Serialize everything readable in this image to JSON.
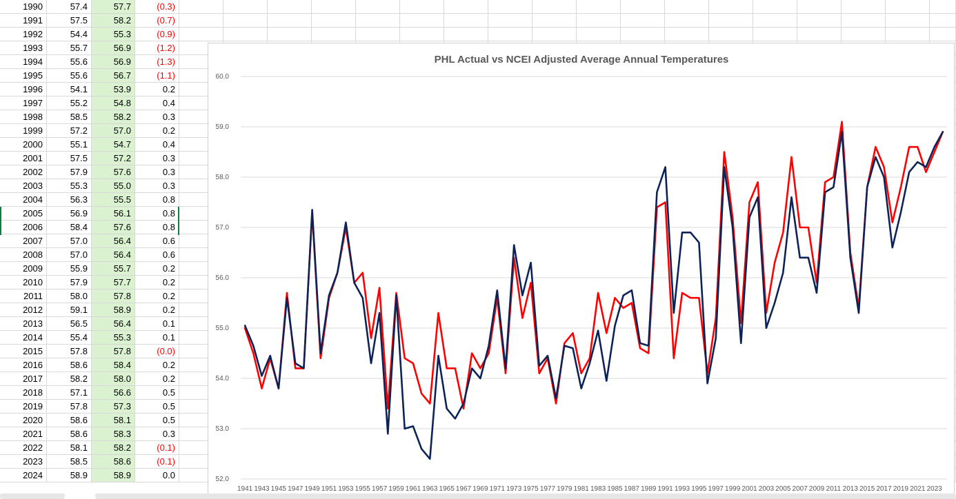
{
  "sheet": {
    "rows": [
      {
        "year": "1990",
        "actual": "57.4",
        "adjusted": "57.7",
        "diff": "(0.3)",
        "negative": true
      },
      {
        "year": "1991",
        "actual": "57.5",
        "adjusted": "58.2",
        "diff": "(0.7)",
        "negative": true
      },
      {
        "year": "1992",
        "actual": "54.4",
        "adjusted": "55.3",
        "diff": "(0.9)",
        "negative": true
      },
      {
        "year": "1993",
        "actual": "55.7",
        "adjusted": "56.9",
        "diff": "(1.2)",
        "negative": true
      },
      {
        "year": "1994",
        "actual": "55.6",
        "adjusted": "56.9",
        "diff": "(1.3)",
        "negative": true
      },
      {
        "year": "1995",
        "actual": "55.6",
        "adjusted": "56.7",
        "diff": "(1.1)",
        "negative": true
      },
      {
        "year": "1996",
        "actual": "54.1",
        "adjusted": "53.9",
        "diff": "0.2",
        "negative": false
      },
      {
        "year": "1997",
        "actual": "55.2",
        "adjusted": "54.8",
        "diff": "0.4",
        "negative": false
      },
      {
        "year": "1998",
        "actual": "58.5",
        "adjusted": "58.2",
        "diff": "0.3",
        "negative": false
      },
      {
        "year": "1999",
        "actual": "57.2",
        "adjusted": "57.0",
        "diff": "0.2",
        "negative": false
      },
      {
        "year": "2000",
        "actual": "55.1",
        "adjusted": "54.7",
        "diff": "0.4",
        "negative": false
      },
      {
        "year": "2001",
        "actual": "57.5",
        "adjusted": "57.2",
        "diff": "0.3",
        "negative": false
      },
      {
        "year": "2002",
        "actual": "57.9",
        "adjusted": "57.6",
        "diff": "0.3",
        "negative": false
      },
      {
        "year": "2003",
        "actual": "55.3",
        "adjusted": "55.0",
        "diff": "0.3",
        "negative": false
      },
      {
        "year": "2004",
        "actual": "56.3",
        "adjusted": "55.5",
        "diff": "0.8",
        "negative": false
      },
      {
        "year": "2005",
        "actual": "56.9",
        "adjusted": "56.1",
        "diff": "0.8",
        "negative": false
      },
      {
        "year": "2006",
        "actual": "58.4",
        "adjusted": "57.6",
        "diff": "0.8",
        "negative": false
      },
      {
        "year": "2007",
        "actual": "57.0",
        "adjusted": "56.4",
        "diff": "0.6",
        "negative": false
      },
      {
        "year": "2008",
        "actual": "57.0",
        "adjusted": "56.4",
        "diff": "0.6",
        "negative": false
      },
      {
        "year": "2009",
        "actual": "55.9",
        "adjusted": "55.7",
        "diff": "0.2",
        "negative": false
      },
      {
        "year": "2010",
        "actual": "57.9",
        "adjusted": "57.7",
        "diff": "0.2",
        "negative": false
      },
      {
        "year": "2011",
        "actual": "58.0",
        "adjusted": "57.8",
        "diff": "0.2",
        "negative": false
      },
      {
        "year": "2012",
        "actual": "59.1",
        "adjusted": "58.9",
        "diff": "0.2",
        "negative": false
      },
      {
        "year": "2013",
        "actual": "56.5",
        "adjusted": "56.4",
        "diff": "0.1",
        "negative": false
      },
      {
        "year": "2014",
        "actual": "55.4",
        "adjusted": "55.3",
        "diff": "0.1",
        "negative": false
      },
      {
        "year": "2015",
        "actual": "57.8",
        "adjusted": "57.8",
        "diff": "(0.0)",
        "negative": true
      },
      {
        "year": "2016",
        "actual": "58.6",
        "adjusted": "58.4",
        "diff": "0.2",
        "negative": false
      },
      {
        "year": "2017",
        "actual": "58.2",
        "adjusted": "58.0",
        "diff": "0.2",
        "negative": false
      },
      {
        "year": "2018",
        "actual": "57.1",
        "adjusted": "56.6",
        "diff": "0.5",
        "negative": false
      },
      {
        "year": "2019",
        "actual": "57.8",
        "adjusted": "57.3",
        "diff": "0.5",
        "negative": false
      },
      {
        "year": "2020",
        "actual": "58.6",
        "adjusted": "58.1",
        "diff": "0.5",
        "negative": false
      },
      {
        "year": "2021",
        "actual": "58.6",
        "adjusted": "58.3",
        "diff": "0.3",
        "negative": false
      },
      {
        "year": "2022",
        "actual": "58.1",
        "adjusted": "58.2",
        "diff": "(0.1)",
        "negative": true
      },
      {
        "year": "2023",
        "actual": "58.5",
        "adjusted": "58.6",
        "diff": "(0.1)",
        "negative": true
      },
      {
        "year": "2024",
        "actual": "58.9",
        "adjusted": "58.9",
        "diff": "0.0",
        "negative": false
      }
    ]
  },
  "chart_data": {
    "type": "line",
    "title": "PHL Actual vs NCEI Adjusted Average Annual Temperatures",
    "xlabel": "",
    "ylabel": "",
    "ylim": [
      52.0,
      60.0
    ],
    "yticks": [
      "52.0",
      "53.0",
      "54.0",
      "55.0",
      "56.0",
      "57.0",
      "58.0",
      "59.0",
      "60.0"
    ],
    "grid": true,
    "legend": "none",
    "x": [
      1941,
      1942,
      1943,
      1944,
      1945,
      1946,
      1947,
      1948,
      1949,
      1950,
      1951,
      1952,
      1953,
      1954,
      1955,
      1956,
      1957,
      1958,
      1959,
      1960,
      1961,
      1962,
      1963,
      1964,
      1965,
      1966,
      1967,
      1968,
      1969,
      1970,
      1971,
      1972,
      1973,
      1974,
      1975,
      1976,
      1977,
      1978,
      1979,
      1980,
      1981,
      1982,
      1983,
      1984,
      1985,
      1986,
      1987,
      1988,
      1989,
      1990,
      1991,
      1992,
      1993,
      1994,
      1995,
      1996,
      1997,
      1998,
      1999,
      2000,
      2001,
      2002,
      2003,
      2004,
      2005,
      2006,
      2007,
      2008,
      2009,
      2010,
      2011,
      2012,
      2013,
      2014,
      2015,
      2016,
      2017,
      2018,
      2019,
      2020,
      2021,
      2022,
      2023,
      2024
    ],
    "xtick_labels": [
      "1941",
      "1943",
      "1945",
      "1947",
      "1949",
      "1951",
      "1953",
      "1955",
      "1957",
      "1959",
      "1961",
      "1963",
      "1965",
      "1967",
      "1969",
      "1971",
      "1973",
      "1975",
      "1977",
      "1979",
      "1981",
      "1983",
      "1985",
      "1987",
      "1989",
      "1991",
      "1993",
      "1995",
      "1997",
      "1999",
      "2001",
      "2003",
      "2005",
      "2007",
      "2009",
      "2011",
      "2013",
      "2015",
      "2017",
      "2019",
      "2021",
      "2023"
    ],
    "series": [
      {
        "color": "#ff0000",
        "values": [
          55.0,
          54.5,
          53.8,
          54.4,
          53.8,
          55.7,
          54.2,
          54.2,
          57.3,
          54.4,
          55.6,
          56.1,
          57.0,
          55.9,
          56.1,
          54.8,
          55.8,
          53.4,
          55.7,
          54.4,
          54.3,
          53.7,
          53.5,
          55.3,
          54.2,
          54.2,
          53.4,
          54.5,
          54.2,
          54.5,
          55.6,
          54.1,
          56.4,
          55.2,
          55.9,
          54.1,
          54.4,
          53.5,
          54.7,
          54.9,
          54.1,
          54.4,
          55.7,
          54.9,
          55.6,
          55.4,
          55.5,
          54.6,
          54.5,
          57.4,
          57.5,
          54.4,
          55.7,
          55.6,
          55.6,
          54.1,
          55.2,
          58.5,
          57.2,
          55.1,
          57.5,
          57.9,
          55.3,
          56.3,
          56.9,
          58.4,
          57.0,
          57.0,
          55.9,
          57.9,
          58.0,
          59.1,
          56.5,
          55.4,
          57.8,
          58.6,
          58.2,
          57.1,
          57.8,
          58.6,
          58.6,
          58.1,
          58.5,
          58.9
        ]
      },
      {
        "color": "#0c2357",
        "values": [
          55.05,
          54.65,
          54.05,
          54.45,
          53.8,
          55.6,
          54.3,
          54.2,
          57.35,
          54.5,
          55.65,
          56.1,
          57.1,
          55.9,
          55.6,
          54.3,
          55.3,
          52.9,
          55.65,
          53.0,
          53.05,
          52.6,
          52.4,
          54.45,
          53.4,
          53.2,
          53.5,
          54.2,
          54.0,
          54.65,
          55.75,
          54.2,
          56.65,
          55.65,
          56.3,
          54.25,
          54.45,
          53.6,
          54.65,
          54.6,
          53.8,
          54.3,
          54.95,
          53.95,
          55.05,
          55.65,
          55.75,
          54.7,
          54.65,
          57.7,
          58.2,
          55.3,
          56.9,
          56.9,
          56.7,
          53.9,
          54.8,
          58.2,
          57.0,
          54.7,
          57.2,
          57.6,
          55.0,
          55.5,
          56.1,
          57.6,
          56.4,
          56.4,
          55.7,
          57.7,
          57.8,
          58.9,
          56.4,
          55.3,
          57.8,
          58.4,
          58.0,
          56.6,
          57.3,
          58.1,
          58.3,
          58.2,
          58.6,
          58.9
        ]
      }
    ]
  },
  "colors": {
    "green_fill": "#daf2d0",
    "negative_text": "#ff0000",
    "selection": "#107c41"
  }
}
